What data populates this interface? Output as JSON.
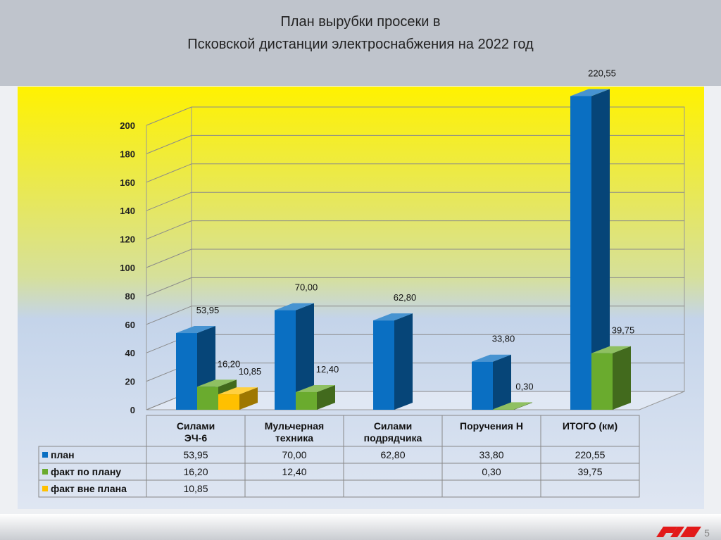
{
  "chart_data": {
    "type": "bar3d",
    "title": [
      "План вырубки просеки в",
      "Псковской дистанции электроснабжения на 2022 год"
    ],
    "categories": [
      "Силами\nЭЧ-6",
      "Мульчерная\nтехника",
      "Силами\nподрядчика",
      "Поручения Н",
      "ИТОГО (км)"
    ],
    "series": [
      {
        "name": "план",
        "color": "#0a6fc2",
        "values": [
          53.95,
          70.0,
          62.8,
          33.8,
          220.55
        ],
        "value_labels": [
          "53,95",
          "70,00",
          "62,80",
          "33,80",
          "220,55"
        ]
      },
      {
        "name": "факт по плану",
        "color": "#6aab2e",
        "values": [
          16.2,
          12.4,
          null,
          0.3,
          39.75
        ],
        "value_labels": [
          "16,20",
          "12,40",
          null,
          "0,30",
          "39,75"
        ]
      },
      {
        "name": "факт вне плана",
        "color": "#ffc000",
        "values": [
          10.85,
          null,
          null,
          null,
          null
        ],
        "value_labels": [
          "10,85",
          null,
          null,
          null,
          null
        ]
      }
    ],
    "ylim": [
      0,
      200
    ],
    "yticks": [
      0,
      20,
      40,
      60,
      80,
      100,
      120,
      140,
      160,
      180,
      200
    ],
    "grid": true
  },
  "slide": {
    "page_number": "5"
  }
}
